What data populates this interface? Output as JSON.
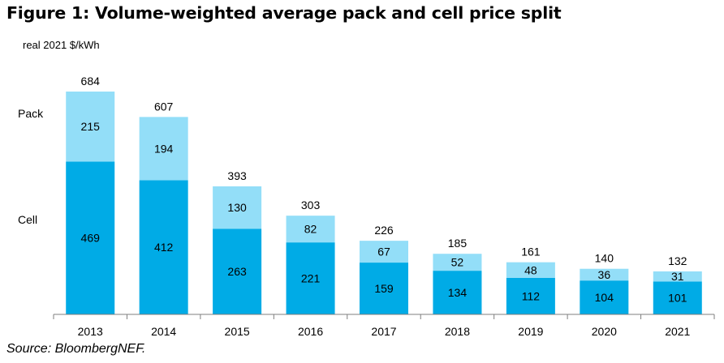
{
  "figure_title": "Figure 1: Volume-weighted average pack and cell price split",
  "unit_label": "real 2021 $/kWh",
  "source": "Source: BloombergNEF.",
  "colors": {
    "cell": "#00ABE6",
    "pack": "#93DEF8",
    "axis": "#7F7F7F",
    "text": "#000000"
  },
  "chart_data": {
    "type": "bar",
    "stacked": true,
    "title": "",
    "xlabel": "",
    "ylabel": "real 2021 $/kWh",
    "ylim": [
      0,
      684
    ],
    "grid": false,
    "legend": "left",
    "categories": [
      "2013",
      "2014",
      "2015",
      "2016",
      "2017",
      "2018",
      "2019",
      "2020",
      "2021"
    ],
    "series": [
      {
        "name": "Cell",
        "values": [
          469,
          412,
          263,
          221,
          159,
          134,
          112,
          104,
          101
        ]
      },
      {
        "name": "Pack",
        "values": [
          215,
          194,
          130,
          82,
          67,
          52,
          48,
          36,
          31
        ]
      }
    ],
    "totals": [
      684,
      607,
      393,
      303,
      226,
      185,
      161,
      140,
      132
    ]
  }
}
